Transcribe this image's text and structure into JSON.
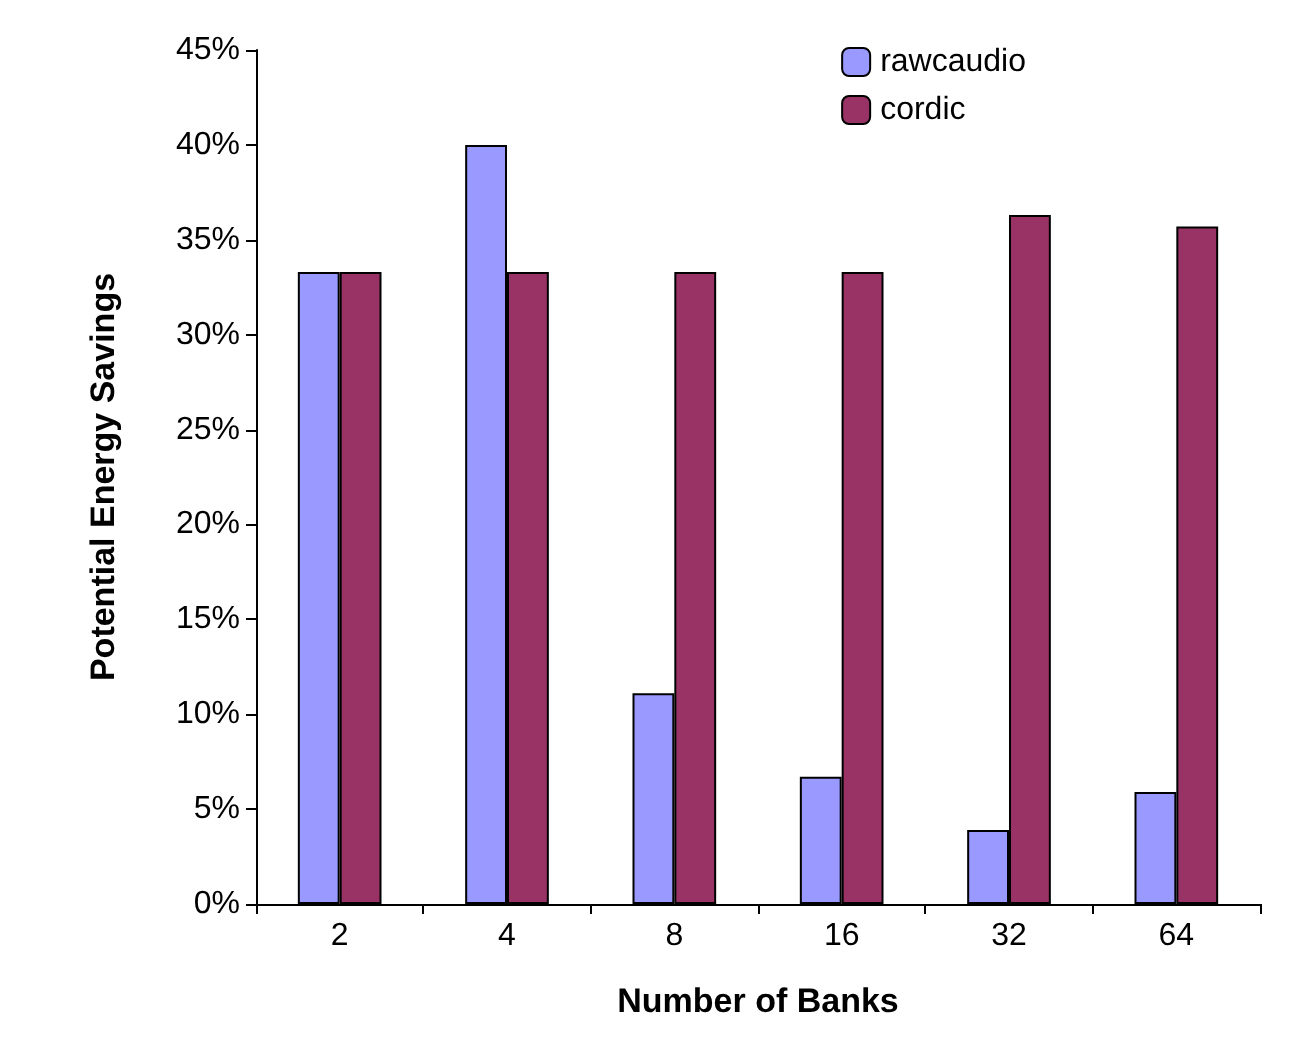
{
  "chart_data": {
    "type": "bar",
    "xlabel": "Number of Banks",
    "ylabel": "Potential Energy Savings",
    "categories": [
      "2",
      "4",
      "8",
      "16",
      "32",
      "64"
    ],
    "series": [
      {
        "name": "rawcaudio",
        "color": "#9999ff",
        "values": [
          33.3,
          40,
          11.1,
          6.7,
          3.9,
          5.9
        ]
      },
      {
        "name": "cordic",
        "color": "#993366",
        "values": [
          33.3,
          33.3,
          33.3,
          33.3,
          36.3,
          35.7
        ]
      }
    ],
    "ylim": [
      0,
      45
    ],
    "yticks": [
      {
        "value": 0,
        "label": "0%"
      },
      {
        "value": 5,
        "label": "5%"
      },
      {
        "value": 10,
        "label": "10%"
      },
      {
        "value": 15,
        "label": "15%"
      },
      {
        "value": 20,
        "label": "20%"
      },
      {
        "value": 25,
        "label": "25%"
      },
      {
        "value": 30,
        "label": "30%"
      },
      {
        "value": 35,
        "label": "35%"
      },
      {
        "value": 40,
        "label": "40%"
      },
      {
        "value": 45,
        "label": "45%"
      }
    ],
    "grid": false,
    "legend": "top right"
  }
}
